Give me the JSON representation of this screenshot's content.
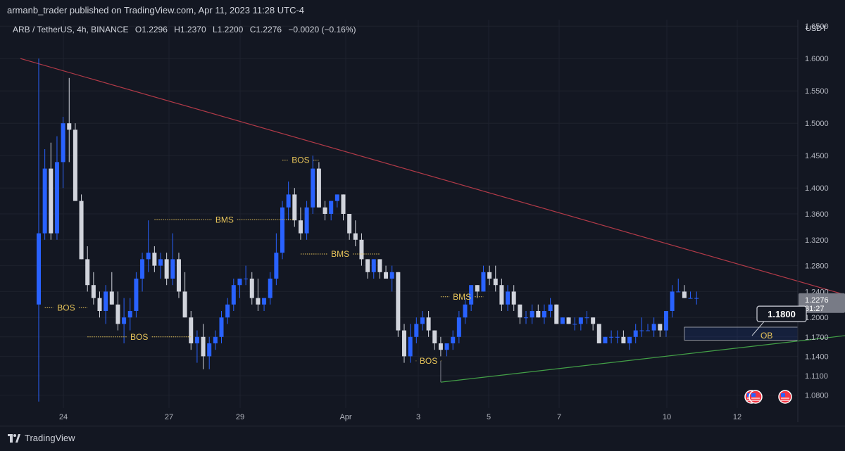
{
  "header": {
    "publisher_line": "armanb_trader published on TradingView.com, Apr 11, 2023 11:28 UTC-4",
    "symbol": "ARB / TetherUS, 4h, BINANCE",
    "open": "O1.2296",
    "high": "H1.2370",
    "low": "L1.2200",
    "close": "C1.2276",
    "change": "−0.0020 (−0.16%)",
    "currency": "USDT"
  },
  "footer": {
    "brand": "TradingView"
  },
  "price_label": {
    "value": "1.2276",
    "countdown": "31:27"
  },
  "callout": {
    "value": "1.1800"
  },
  "chart_data": {
    "type": "candlestick",
    "y_axis": {
      "ticks": [
        "1.0800",
        "1.1100",
        "1.1400",
        "1.1700",
        "1.2000",
        "1.2400",
        "1.2800",
        "1.3200",
        "1.3600",
        "1.4000",
        "1.4500",
        "1.5000",
        "1.5500",
        "1.6000",
        "1.6500"
      ],
      "range": [
        1.06,
        1.66
      ]
    },
    "x_axis": {
      "ticks": [
        "24",
        "27",
        "29",
        "Apr",
        "3",
        "5",
        "7",
        "10",
        "12"
      ]
    },
    "candles": [
      [
        1.22,
        1.6,
        1.07,
        1.33
      ],
      [
        1.33,
        1.46,
        1.32,
        1.43
      ],
      [
        1.43,
        1.47,
        1.32,
        1.33
      ],
      [
        1.33,
        1.48,
        1.32,
        1.44
      ],
      [
        1.44,
        1.51,
        1.4,
        1.5
      ],
      [
        1.5,
        1.57,
        1.44,
        1.49
      ],
      [
        1.49,
        1.5,
        1.38,
        1.38
      ],
      [
        1.38,
        1.39,
        1.29,
        1.29
      ],
      [
        1.29,
        1.31,
        1.24,
        1.25
      ],
      [
        1.25,
        1.27,
        1.22,
        1.23
      ],
      [
        1.23,
        1.24,
        1.2,
        1.21
      ],
      [
        1.21,
        1.25,
        1.19,
        1.24
      ],
      [
        1.24,
        1.27,
        1.22,
        1.22
      ],
      [
        1.22,
        1.24,
        1.18,
        1.19
      ],
      [
        1.19,
        1.23,
        1.16,
        1.2
      ],
      [
        1.2,
        1.23,
        1.18,
        1.21
      ],
      [
        1.21,
        1.27,
        1.2,
        1.26
      ],
      [
        1.26,
        1.3,
        1.24,
        1.29
      ],
      [
        1.29,
        1.35,
        1.27,
        1.3
      ],
      [
        1.3,
        1.31,
        1.27,
        1.28
      ],
      [
        1.28,
        1.3,
        1.26,
        1.29
      ],
      [
        1.29,
        1.3,
        1.25,
        1.26
      ],
      [
        1.26,
        1.33,
        1.25,
        1.29
      ],
      [
        1.29,
        1.3,
        1.23,
        1.24
      ],
      [
        1.24,
        1.27,
        1.2,
        1.2
      ],
      [
        1.2,
        1.21,
        1.15,
        1.16
      ],
      [
        1.16,
        1.18,
        1.13,
        1.17
      ],
      [
        1.17,
        1.19,
        1.12,
        1.14
      ],
      [
        1.14,
        1.17,
        1.12,
        1.16
      ],
      [
        1.16,
        1.18,
        1.15,
        1.17
      ],
      [
        1.17,
        1.21,
        1.16,
        1.2
      ],
      [
        1.2,
        1.23,
        1.19,
        1.22
      ],
      [
        1.22,
        1.26,
        1.21,
        1.25
      ],
      [
        1.25,
        1.26,
        1.23,
        1.26
      ],
      [
        1.26,
        1.28,
        1.25,
        1.26
      ],
      [
        1.26,
        1.27,
        1.22,
        1.23
      ],
      [
        1.23,
        1.26,
        1.21,
        1.22
      ],
      [
        1.22,
        1.23,
        1.21,
        1.23
      ],
      [
        1.23,
        1.27,
        1.22,
        1.26
      ],
      [
        1.26,
        1.33,
        1.25,
        1.3
      ],
      [
        1.3,
        1.38,
        1.29,
        1.37
      ],
      [
        1.37,
        1.41,
        1.35,
        1.39
      ],
      [
        1.39,
        1.4,
        1.34,
        1.35
      ],
      [
        1.35,
        1.37,
        1.32,
        1.33
      ],
      [
        1.33,
        1.38,
        1.32,
        1.37
      ],
      [
        1.37,
        1.45,
        1.36,
        1.43
      ],
      [
        1.43,
        1.44,
        1.37,
        1.37
      ],
      [
        1.37,
        1.38,
        1.35,
        1.36
      ],
      [
        1.36,
        1.38,
        1.35,
        1.38
      ],
      [
        1.38,
        1.39,
        1.37,
        1.39
      ],
      [
        1.39,
        1.39,
        1.35,
        1.36
      ],
      [
        1.36,
        1.36,
        1.32,
        1.33
      ],
      [
        1.33,
        1.35,
        1.31,
        1.32
      ],
      [
        1.32,
        1.33,
        1.28,
        1.29
      ],
      [
        1.29,
        1.29,
        1.26,
        1.27
      ],
      [
        1.27,
        1.29,
        1.26,
        1.29
      ],
      [
        1.29,
        1.29,
        1.26,
        1.27
      ],
      [
        1.27,
        1.28,
        1.26,
        1.26
      ],
      [
        1.26,
        1.28,
        1.24,
        1.27
      ],
      [
        1.27,
        1.27,
        1.17,
        1.18
      ],
      [
        1.18,
        1.19,
        1.13,
        1.14
      ],
      [
        1.14,
        1.19,
        1.13,
        1.17
      ],
      [
        1.17,
        1.2,
        1.16,
        1.19
      ],
      [
        1.19,
        1.21,
        1.18,
        1.2
      ],
      [
        1.2,
        1.21,
        1.17,
        1.18
      ],
      [
        1.18,
        1.18,
        1.15,
        1.16
      ],
      [
        1.16,
        1.17,
        1.14,
        1.15
      ],
      [
        1.15,
        1.16,
        1.14,
        1.16
      ],
      [
        1.16,
        1.18,
        1.15,
        1.17
      ],
      [
        1.17,
        1.21,
        1.16,
        1.2
      ],
      [
        1.2,
        1.23,
        1.19,
        1.22
      ],
      [
        1.22,
        1.25,
        1.21,
        1.25
      ],
      [
        1.25,
        1.25,
        1.23,
        1.24
      ],
      [
        1.24,
        1.28,
        1.24,
        1.27
      ],
      [
        1.27,
        1.28,
        1.25,
        1.26
      ],
      [
        1.26,
        1.28,
        1.24,
        1.25
      ],
      [
        1.25,
        1.26,
        1.21,
        1.22
      ],
      [
        1.22,
        1.25,
        1.21,
        1.24
      ],
      [
        1.24,
        1.25,
        1.21,
        1.22
      ],
      [
        1.22,
        1.22,
        1.19,
        1.2
      ],
      [
        1.2,
        1.21,
        1.19,
        1.2
      ],
      [
        1.2,
        1.22,
        1.19,
        1.21
      ],
      [
        1.21,
        1.22,
        1.2,
        1.2
      ],
      [
        1.2,
        1.22,
        1.19,
        1.21
      ],
      [
        1.21,
        1.23,
        1.2,
        1.22
      ],
      [
        1.22,
        1.22,
        1.19,
        1.19
      ],
      [
        1.19,
        1.2,
        1.19,
        1.2
      ],
      [
        1.2,
        1.2,
        1.19,
        1.19
      ],
      [
        1.19,
        1.2,
        1.18,
        1.19
      ],
      [
        1.19,
        1.2,
        1.18,
        1.2
      ],
      [
        1.2,
        1.21,
        1.19,
        1.2
      ],
      [
        1.2,
        1.2,
        1.18,
        1.19
      ],
      [
        1.19,
        1.19,
        1.16,
        1.16
      ],
      [
        1.16,
        1.17,
        1.16,
        1.17
      ],
      [
        1.17,
        1.18,
        1.16,
        1.17
      ],
      [
        1.17,
        1.18,
        1.16,
        1.17
      ],
      [
        1.17,
        1.18,
        1.16,
        1.16
      ],
      [
        1.16,
        1.17,
        1.15,
        1.17
      ],
      [
        1.17,
        1.19,
        1.16,
        1.18
      ],
      [
        1.18,
        1.2,
        1.17,
        1.18
      ],
      [
        1.18,
        1.19,
        1.18,
        1.18
      ],
      [
        1.18,
        1.2,
        1.17,
        1.19
      ],
      [
        1.19,
        1.19,
        1.17,
        1.18
      ],
      [
        1.18,
        1.21,
        1.17,
        1.21
      ],
      [
        1.21,
        1.25,
        1.2,
        1.24
      ],
      [
        1.24,
        1.26,
        1.24,
        1.24
      ],
      [
        1.24,
        1.25,
        1.23,
        1.23
      ],
      [
        1.23,
        1.24,
        1.23,
        1.23
      ],
      [
        1.23,
        1.24,
        1.22,
        1.23
      ]
    ],
    "annotations": [
      {
        "label": "BOS",
        "price": 1.215,
        "from_candle": 1,
        "to_candle": 8
      },
      {
        "label": "BOS",
        "price": 1.17,
        "from_candle": 8,
        "to_candle": 25
      },
      {
        "label": "BMS",
        "price": 1.351,
        "from_candle": 19,
        "to_candle": 42
      },
      {
        "label": "BOS",
        "price": 1.443,
        "from_candle": 40,
        "to_candle": 46
      },
      {
        "label": "BMS",
        "price": 1.298,
        "from_candle": 43,
        "to_candle": 56
      },
      {
        "label": "BMS",
        "price": 1.232,
        "from_candle": 66,
        "to_candle": 73
      },
      {
        "label": "BOS",
        "price": 1.133,
        "from_candle": 62,
        "to_candle": 66
      }
    ],
    "trendlines": [
      {
        "name": "descending resistance",
        "color": "#b23a48",
        "from": {
          "candle": -3,
          "price": 1.6
        },
        "to": {
          "candle": 138,
          "price": 1.22
        }
      },
      {
        "name": "ascending support",
        "color": "#43a047",
        "from": {
          "candle": 66,
          "price": 1.1
        },
        "to": {
          "candle": 138,
          "price": 1.178
        }
      }
    ],
    "order_block": {
      "label": "OB",
      "top": 1.185,
      "bottom": 1.165,
      "from_candle": 106
    },
    "colors": {
      "up": "#2962ff",
      "down": "#d1d4dc",
      "grid": "#1e222d",
      "annotation": "#e8c55a"
    }
  }
}
